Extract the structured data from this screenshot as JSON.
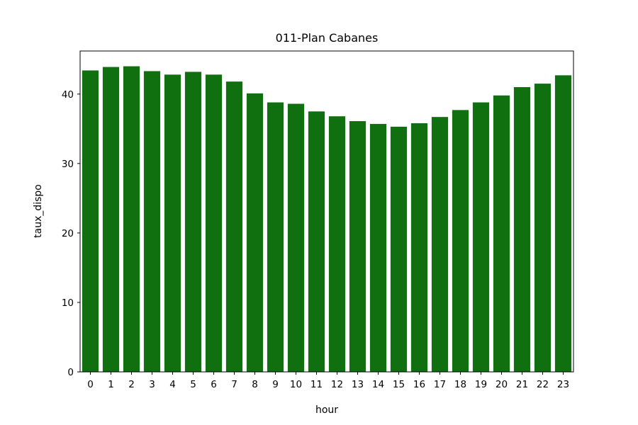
{
  "chart_data": {
    "type": "bar",
    "title": "011-Plan Cabanes",
    "xlabel": "hour",
    "ylabel": "taux_dispo",
    "categories": [
      "0",
      "1",
      "2",
      "3",
      "4",
      "5",
      "6",
      "7",
      "8",
      "9",
      "10",
      "11",
      "12",
      "13",
      "14",
      "15",
      "16",
      "17",
      "18",
      "19",
      "20",
      "21",
      "22",
      "23"
    ],
    "values": [
      43.4,
      43.9,
      44.0,
      43.3,
      42.8,
      43.2,
      42.8,
      41.8,
      40.1,
      38.8,
      38.6,
      37.5,
      36.8,
      36.1,
      35.7,
      35.3,
      35.8,
      36.7,
      37.7,
      38.8,
      39.8,
      41.0,
      41.5,
      42.7
    ],
    "yticks": [
      0,
      10,
      20,
      30,
      40
    ],
    "ylim": [
      0,
      46.2
    ],
    "grid": false,
    "bar_color": "#107010"
  }
}
